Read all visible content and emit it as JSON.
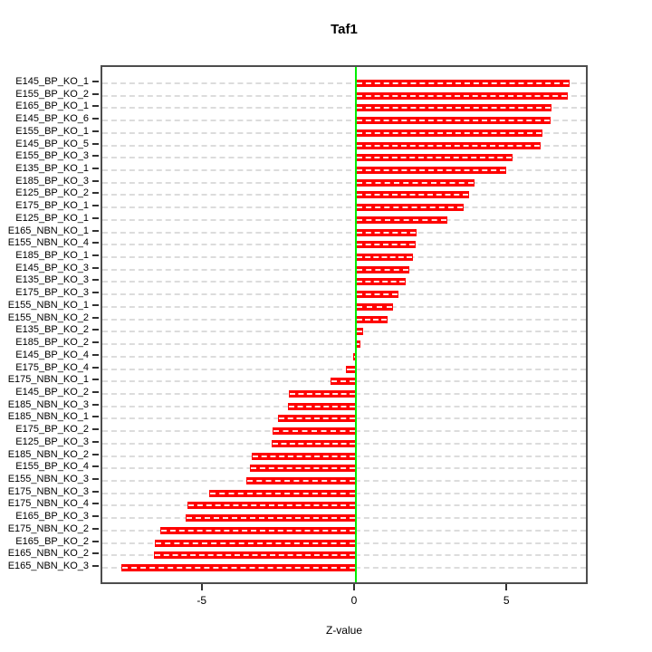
{
  "title": "Taf1",
  "colors": {
    "bar": "#ff0000",
    "zero_line": "#00ee00",
    "gridline": "#dcdcdc",
    "plot_border": "#4d4d4d",
    "text": "#000000"
  },
  "chart_data": {
    "type": "bar",
    "orientation": "horizontal",
    "title": "Taf1",
    "xlabel": "Z-value",
    "ylabel": "",
    "xlim": [
      -8.32,
      7.67
    ],
    "xticks": [
      -5,
      0,
      5
    ],
    "grid": "horizontal dashed gridline per category",
    "legend": "none",
    "bar_color": "#ff0000",
    "zero_line_color": "#00ee00",
    "categories": [
      "E145_BP_KO_1",
      "E155_BP_KO_2",
      "E165_BP_KO_1",
      "E145_BP_KO_6",
      "E155_BP_KO_1",
      "E145_BP_KO_5",
      "E155_BP_KO_3",
      "E135_BP_KO_1",
      "E185_BP_KO_3",
      "E125_BP_KO_2",
      "E175_BP_KO_1",
      "E125_BP_KO_1",
      "E165_NBN_KO_1",
      "E155_NBN_KO_4",
      "E185_BP_KO_1",
      "E145_BP_KO_3",
      "E135_BP_KO_3",
      "E175_BP_KO_3",
      "E155_NBN_KO_1",
      "E155_NBN_KO_2",
      "E135_BP_KO_2",
      "E185_BP_KO_2",
      "E145_BP_KO_4",
      "E175_BP_KO_4",
      "E175_NBN_KO_1",
      "E145_BP_KO_2",
      "E185_NBN_KO_3",
      "E185_NBN_KO_1",
      "E175_BP_KO_2",
      "E125_BP_KO_3",
      "E185_NBN_KO_2",
      "E155_BP_KO_4",
      "E155_NBN_KO_3",
      "E175_NBN_KO_3",
      "E175_NBN_KO_4",
      "E165_BP_KO_3",
      "E175_NBN_KO_2",
      "E165_BP_KO_2",
      "E165_NBN_KO_2",
      "E165_NBN_KO_3"
    ],
    "values": [
      7.03,
      6.97,
      6.41,
      6.38,
      6.12,
      6.08,
      5.13,
      4.93,
      3.9,
      3.72,
      3.55,
      2.99,
      2.0,
      1.97,
      1.88,
      1.75,
      1.64,
      1.39,
      1.23,
      1.03,
      0.24,
      0.15,
      -0.09,
      -0.33,
      -0.82,
      -2.19,
      -2.22,
      -2.54,
      -2.73,
      -2.75,
      -3.43,
      -3.48,
      -3.6,
      -4.81,
      -5.52,
      -5.58,
      -6.43,
      -6.61,
      -6.64,
      -7.71
    ]
  }
}
